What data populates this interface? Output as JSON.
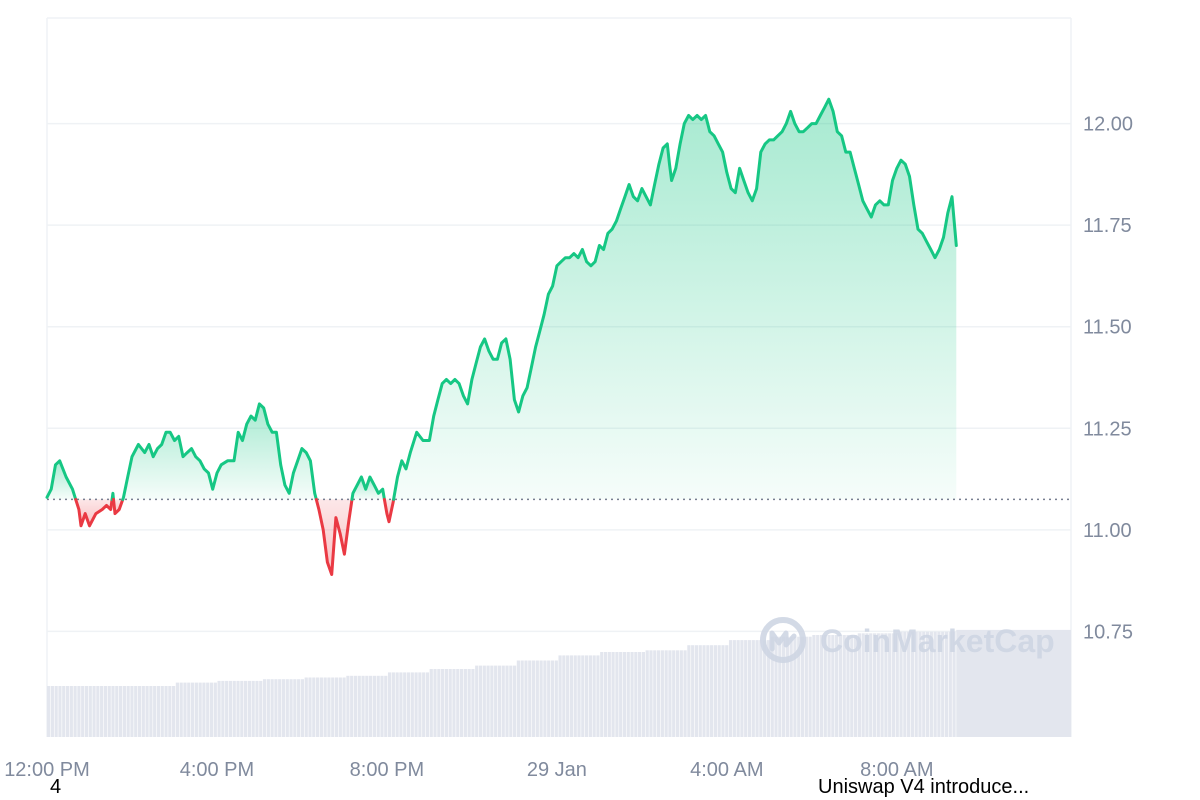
{
  "chart_data": {
    "type": "area",
    "baseline": 11.075,
    "y_ticks": [
      "12.00",
      "11.75",
      "11.50",
      "11.25",
      "11.00",
      "10.75"
    ],
    "y_tick_values": [
      12.0,
      11.75,
      11.5,
      11.25,
      11.0,
      10.75
    ],
    "ylim": [
      10.49,
      12.26
    ],
    "x_ticks": [
      "12:00 PM",
      "4:00 PM",
      "8:00 PM",
      "29 Jan",
      "4:00 AM",
      "8:00 AM"
    ],
    "x_tick_hours": [
      0,
      4,
      8,
      12,
      16,
      20
    ],
    "xlim_hours": [
      0,
      24.1
    ],
    "price": [
      [
        0.0,
        11.08
      ],
      [
        0.1,
        11.1
      ],
      [
        0.2,
        11.16
      ],
      [
        0.3,
        11.17
      ],
      [
        0.45,
        11.13
      ],
      [
        0.6,
        11.1
      ],
      [
        0.75,
        11.05
      ],
      [
        0.8,
        11.01
      ],
      [
        0.9,
        11.04
      ],
      [
        1.0,
        11.01
      ],
      [
        1.15,
        11.04
      ],
      [
        1.3,
        11.05
      ],
      [
        1.4,
        11.06
      ],
      [
        1.5,
        11.05
      ],
      [
        1.55,
        11.09
      ],
      [
        1.6,
        11.04
      ],
      [
        1.7,
        11.05
      ],
      [
        1.8,
        11.08
      ],
      [
        1.9,
        11.13
      ],
      [
        2.0,
        11.18
      ],
      [
        2.15,
        11.21
      ],
      [
        2.3,
        11.19
      ],
      [
        2.4,
        11.21
      ],
      [
        2.5,
        11.18
      ],
      [
        2.6,
        11.2
      ],
      [
        2.7,
        11.21
      ],
      [
        2.8,
        11.24
      ],
      [
        2.9,
        11.24
      ],
      [
        3.0,
        11.22
      ],
      [
        3.1,
        11.23
      ],
      [
        3.2,
        11.18
      ],
      [
        3.3,
        11.19
      ],
      [
        3.4,
        11.2
      ],
      [
        3.5,
        11.18
      ],
      [
        3.6,
        11.17
      ],
      [
        3.7,
        11.15
      ],
      [
        3.8,
        11.14
      ],
      [
        3.9,
        11.1
      ],
      [
        4.0,
        11.14
      ],
      [
        4.1,
        11.16
      ],
      [
        4.25,
        11.17
      ],
      [
        4.4,
        11.17
      ],
      [
        4.5,
        11.24
      ],
      [
        4.6,
        11.22
      ],
      [
        4.7,
        11.26
      ],
      [
        4.8,
        11.28
      ],
      [
        4.9,
        11.27
      ],
      [
        5.0,
        11.31
      ],
      [
        5.1,
        11.3
      ],
      [
        5.2,
        11.26
      ],
      [
        5.3,
        11.24
      ],
      [
        5.4,
        11.24
      ],
      [
        5.5,
        11.16
      ],
      [
        5.6,
        11.11
      ],
      [
        5.7,
        11.09
      ],
      [
        5.8,
        11.14
      ],
      [
        5.9,
        11.17
      ],
      [
        6.0,
        11.2
      ],
      [
        6.1,
        11.19
      ],
      [
        6.2,
        11.17
      ],
      [
        6.3,
        11.09
      ],
      [
        6.4,
        11.05
      ],
      [
        6.5,
        11.0
      ],
      [
        6.6,
        10.92
      ],
      [
        6.7,
        10.89
      ],
      [
        6.8,
        11.03
      ],
      [
        6.9,
        10.99
      ],
      [
        7.0,
        10.94
      ],
      [
        7.1,
        11.02
      ],
      [
        7.2,
        11.09
      ],
      [
        7.3,
        11.11
      ],
      [
        7.4,
        11.13
      ],
      [
        7.5,
        11.1
      ],
      [
        7.6,
        11.13
      ],
      [
        7.7,
        11.11
      ],
      [
        7.8,
        11.09
      ],
      [
        7.9,
        11.1
      ],
      [
        8.0,
        11.04
      ],
      [
        8.05,
        11.02
      ],
      [
        8.15,
        11.07
      ],
      [
        8.25,
        11.13
      ],
      [
        8.35,
        11.17
      ],
      [
        8.45,
        11.15
      ],
      [
        8.55,
        11.19
      ],
      [
        8.7,
        11.24
      ],
      [
        8.85,
        11.22
      ],
      [
        9.0,
        11.22
      ],
      [
        9.1,
        11.28
      ],
      [
        9.2,
        11.32
      ],
      [
        9.3,
        11.36
      ],
      [
        9.4,
        11.37
      ],
      [
        9.5,
        11.36
      ],
      [
        9.6,
        11.37
      ],
      [
        9.7,
        11.36
      ],
      [
        9.8,
        11.33
      ],
      [
        9.9,
        11.31
      ],
      [
        10.0,
        11.37
      ],
      [
        10.1,
        11.41
      ],
      [
        10.2,
        11.45
      ],
      [
        10.3,
        11.47
      ],
      [
        10.4,
        11.44
      ],
      [
        10.5,
        11.42
      ],
      [
        10.6,
        11.42
      ],
      [
        10.7,
        11.46
      ],
      [
        10.8,
        11.47
      ],
      [
        10.9,
        11.42
      ],
      [
        11.0,
        11.32
      ],
      [
        11.1,
        11.29
      ],
      [
        11.2,
        11.33
      ],
      [
        11.3,
        11.35
      ],
      [
        11.4,
        11.4
      ],
      [
        11.5,
        11.45
      ],
      [
        11.6,
        11.49
      ],
      [
        11.7,
        11.53
      ],
      [
        11.8,
        11.58
      ],
      [
        11.9,
        11.6
      ],
      [
        12.0,
        11.65
      ],
      [
        12.1,
        11.66
      ],
      [
        12.2,
        11.67
      ],
      [
        12.3,
        11.67
      ],
      [
        12.4,
        11.68
      ],
      [
        12.5,
        11.67
      ],
      [
        12.6,
        11.69
      ],
      [
        12.7,
        11.66
      ],
      [
        12.8,
        11.65
      ],
      [
        12.9,
        11.66
      ],
      [
        13.0,
        11.7
      ],
      [
        13.1,
        11.69
      ],
      [
        13.2,
        11.73
      ],
      [
        13.3,
        11.74
      ],
      [
        13.4,
        11.76
      ],
      [
        13.5,
        11.79
      ],
      [
        13.6,
        11.82
      ],
      [
        13.7,
        11.85
      ],
      [
        13.8,
        11.82
      ],
      [
        13.9,
        11.81
      ],
      [
        14.0,
        11.84
      ],
      [
        14.1,
        11.82
      ],
      [
        14.2,
        11.8
      ],
      [
        14.3,
        11.85
      ],
      [
        14.4,
        11.9
      ],
      [
        14.5,
        11.94
      ],
      [
        14.6,
        11.95
      ],
      [
        14.65,
        11.9
      ],
      [
        14.7,
        11.86
      ],
      [
        14.8,
        11.89
      ],
      [
        14.9,
        11.95
      ],
      [
        15.0,
        12.0
      ],
      [
        15.1,
        12.02
      ],
      [
        15.2,
        12.01
      ],
      [
        15.3,
        12.02
      ],
      [
        15.4,
        12.01
      ],
      [
        15.5,
        12.02
      ],
      [
        15.6,
        11.98
      ],
      [
        15.7,
        11.97
      ],
      [
        15.8,
        11.95
      ],
      [
        15.9,
        11.93
      ],
      [
        16.0,
        11.88
      ],
      [
        16.1,
        11.84
      ],
      [
        16.2,
        11.83
      ],
      [
        16.3,
        11.89
      ],
      [
        16.4,
        11.86
      ],
      [
        16.5,
        11.83
      ],
      [
        16.6,
        11.81
      ],
      [
        16.7,
        11.84
      ],
      [
        16.8,
        11.93
      ],
      [
        16.9,
        11.95
      ],
      [
        17.0,
        11.96
      ],
      [
        17.1,
        11.96
      ],
      [
        17.2,
        11.97
      ],
      [
        17.3,
        11.98
      ],
      [
        17.4,
        12.0
      ],
      [
        17.5,
        12.03
      ],
      [
        17.6,
        12.0
      ],
      [
        17.7,
        11.98
      ],
      [
        17.8,
        11.98
      ],
      [
        17.9,
        11.99
      ],
      [
        18.0,
        12.0
      ],
      [
        18.1,
        12.0
      ],
      [
        18.2,
        12.02
      ],
      [
        18.3,
        12.04
      ],
      [
        18.4,
        12.06
      ],
      [
        18.5,
        12.03
      ],
      [
        18.6,
        11.98
      ],
      [
        18.7,
        11.97
      ],
      [
        18.8,
        11.93
      ],
      [
        18.9,
        11.93
      ],
      [
        19.0,
        11.89
      ],
      [
        19.1,
        11.85
      ],
      [
        19.2,
        11.81
      ],
      [
        19.3,
        11.79
      ],
      [
        19.4,
        11.77
      ],
      [
        19.5,
        11.8
      ],
      [
        19.6,
        11.81
      ],
      [
        19.7,
        11.8
      ],
      [
        19.8,
        11.8
      ],
      [
        19.9,
        11.86
      ],
      [
        20.0,
        11.89
      ],
      [
        20.1,
        11.91
      ],
      [
        20.2,
        11.9
      ],
      [
        20.3,
        11.87
      ],
      [
        20.4,
        11.8
      ],
      [
        20.5,
        11.74
      ],
      [
        20.6,
        11.73
      ],
      [
        20.7,
        11.71
      ],
      [
        20.8,
        11.69
      ],
      [
        20.9,
        11.67
      ],
      [
        21.0,
        11.69
      ],
      [
        21.1,
        11.72
      ],
      [
        21.2,
        11.78
      ],
      [
        21.3,
        11.82
      ],
      [
        21.4,
        11.7
      ]
    ],
    "volume_levels": [
      [
        0.0,
        0.3
      ],
      [
        1.5,
        0.3
      ],
      [
        3.0,
        0.32
      ],
      [
        4.0,
        0.33
      ],
      [
        5.0,
        0.34
      ],
      [
        6.0,
        0.35
      ],
      [
        7.0,
        0.36
      ],
      [
        8.0,
        0.38
      ],
      [
        9.0,
        0.4
      ],
      [
        10.0,
        0.42
      ],
      [
        11.0,
        0.45
      ],
      [
        12.0,
        0.48
      ],
      [
        13.0,
        0.5
      ],
      [
        14.0,
        0.51
      ],
      [
        15.0,
        0.54
      ],
      [
        16.0,
        0.57
      ],
      [
        17.0,
        0.59
      ],
      [
        18.0,
        0.6
      ],
      [
        19.0,
        0.61
      ],
      [
        20.0,
        0.62
      ],
      [
        21.5,
        0.63
      ]
    ],
    "colors": {
      "up": "#16c784",
      "down": "#ea3943",
      "grid": "#eff2f5",
      "baseline": "#777e90",
      "volume": "#e3e6ee"
    }
  },
  "watermark": {
    "text": "CoinMarketCap",
    "icon": "coinmarketcap-logo-icon"
  },
  "news": {
    "left": "4",
    "right": "Uniswap V4 introduce..."
  }
}
